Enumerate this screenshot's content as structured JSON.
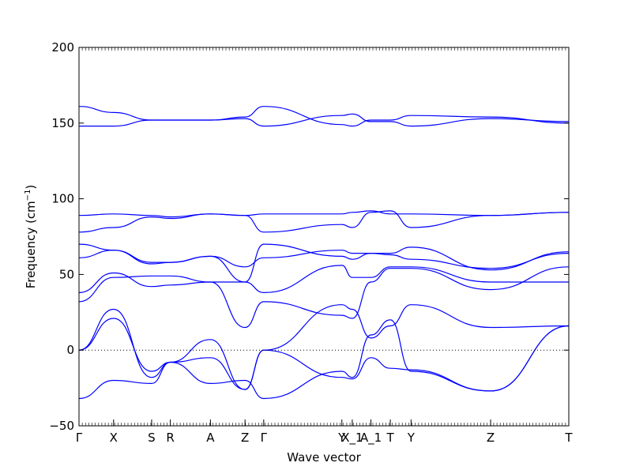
{
  "chart_data": {
    "type": "line",
    "title": "",
    "xlabel": "Wave vector",
    "ylabel": "Frequency (cm",
    "ylabel_sup": "−1",
    "ylabel_close": ")",
    "ylim": [
      -50,
      200
    ],
    "yticks": [
      -50,
      0,
      50,
      100,
      150,
      200
    ],
    "zero_line": true,
    "line_color": "#0000ff",
    "grid": false,
    "legend": "none",
    "x_ticks": [
      {
        "label": "Γ",
        "x": 0.0
      },
      {
        "label": "X",
        "x": 0.5
      },
      {
        "label": "S",
        "x": 1.05
      },
      {
        "label": "R",
        "x": 1.32
      },
      {
        "label": "A",
        "x": 1.9
      },
      {
        "label": "Z",
        "x": 2.4
      },
      {
        "label": "Γ",
        "x": 2.67
      },
      {
        "label": "Y",
        "x": 3.8
      },
      {
        "label": "X_1",
        "x": 3.95
      },
      {
        "label": "A_1",
        "x": 4.22
      },
      {
        "label": "T",
        "x": 4.5
      },
      {
        "label": "Y",
        "x": 4.8
      },
      {
        "label": "Z",
        "x": 5.95
      },
      {
        "label": "T",
        "x": 7.08
      }
    ],
    "series": [
      {
        "x": [
          0,
          0.5,
          1.05,
          1.32,
          1.9,
          2.4,
          2.67,
          3.8,
          3.95,
          4.22,
          4.5,
          4.8,
          5.95,
          7.08
        ],
        "values": [
          161,
          157,
          152,
          152,
          152,
          154,
          161,
          149,
          148,
          152,
          152,
          155,
          154,
          150
        ]
      },
      {
        "x": [
          0,
          0.5,
          1.05,
          1.32,
          1.9,
          2.4,
          2.67,
          3.8,
          3.95,
          4.22,
          4.5,
          4.8,
          5.95,
          7.08
        ],
        "values": [
          148,
          148,
          152,
          152,
          152,
          153,
          148,
          155,
          156,
          151,
          151,
          148,
          153,
          151
        ]
      },
      {
        "x": [
          0,
          0.5,
          1.05,
          1.32,
          1.9,
          2.4,
          2.67,
          3.8,
          3.95,
          4.22,
          4.5,
          4.8,
          5.95,
          7.08
        ],
        "values": [
          89,
          90,
          89,
          88,
          90,
          89,
          90,
          90,
          91,
          92,
          90,
          90,
          89,
          91
        ]
      },
      {
        "x": [
          0,
          0.5,
          1.05,
          1.32,
          1.9,
          2.4,
          2.67,
          3.8,
          3.95,
          4.22,
          4.5,
          4.8,
          5.95,
          7.08
        ],
        "values": [
          78,
          81,
          88,
          87,
          90,
          89,
          78,
          83,
          81,
          91,
          92,
          81,
          89,
          91
        ]
      },
      {
        "x": [
          0,
          0.5,
          1.05,
          1.32,
          1.9,
          2.4,
          2.67,
          3.8,
          3.95,
          4.22,
          4.5,
          4.8,
          5.95,
          7.08
        ],
        "values": [
          70,
          66,
          58,
          58,
          62,
          45,
          70,
          62,
          60,
          64,
          64,
          68,
          53,
          65
        ]
      },
      {
        "x": [
          0,
          0.5,
          1.05,
          1.32,
          1.9,
          2.4,
          2.67,
          3.8,
          3.95,
          4.22,
          4.5,
          4.8,
          5.95,
          7.08
        ],
        "values": [
          61,
          66,
          57,
          58,
          62,
          55,
          61,
          66,
          64,
          64,
          63,
          60,
          54,
          64
        ]
      },
      {
        "x": [
          0,
          0.5,
          1.05,
          1.32,
          1.9,
          2.4,
          2.67,
          3.8,
          3.95,
          4.22,
          4.5,
          4.8,
          5.95,
          7.08
        ],
        "values": [
          38,
          51,
          42,
          43,
          45,
          45,
          38,
          56,
          48,
          48,
          55,
          55,
          45,
          45
        ]
      },
      {
        "x": [
          0,
          0.5,
          1.05,
          1.32,
          1.9,
          2.4,
          2.67,
          3.8,
          3.95,
          4.22,
          4.5,
          4.8,
          5.95,
          7.08
        ],
        "values": [
          32,
          48,
          49,
          49,
          45,
          15,
          32,
          23,
          21,
          45,
          54,
          54,
          40,
          55
        ]
      },
      {
        "x": [
          0,
          0.5,
          1.05,
          1.32,
          1.9,
          2.4,
          2.67,
          3.8,
          3.95,
          4.22,
          4.5,
          4.8,
          5.95,
          7.08
        ],
        "values": [
          0,
          27,
          -18,
          -8,
          -5,
          -26,
          0,
          30,
          27,
          8,
          16,
          30,
          15,
          16
        ]
      },
      {
        "x": [
          0,
          0.5,
          1.05,
          1.32,
          1.9,
          2.4,
          2.67,
          3.8,
          3.95,
          4.22,
          4.5,
          4.8,
          5.95,
          7.08
        ],
        "values": [
          0,
          21,
          -14,
          -8,
          7,
          -26,
          0,
          -18,
          -19,
          -5,
          -12,
          -13,
          -27,
          16
        ]
      },
      {
        "x": [
          0,
          0.5,
          1.05,
          1.32,
          1.9,
          2.4,
          2.67,
          3.8,
          3.95,
          4.22,
          4.5,
          4.8,
          5.95,
          7.08
        ],
        "values": [
          -32,
          -20,
          -22,
          -8,
          -22,
          -20,
          -32,
          -14,
          -18,
          10,
          20,
          -14,
          -27,
          16
        ]
      }
    ]
  }
}
